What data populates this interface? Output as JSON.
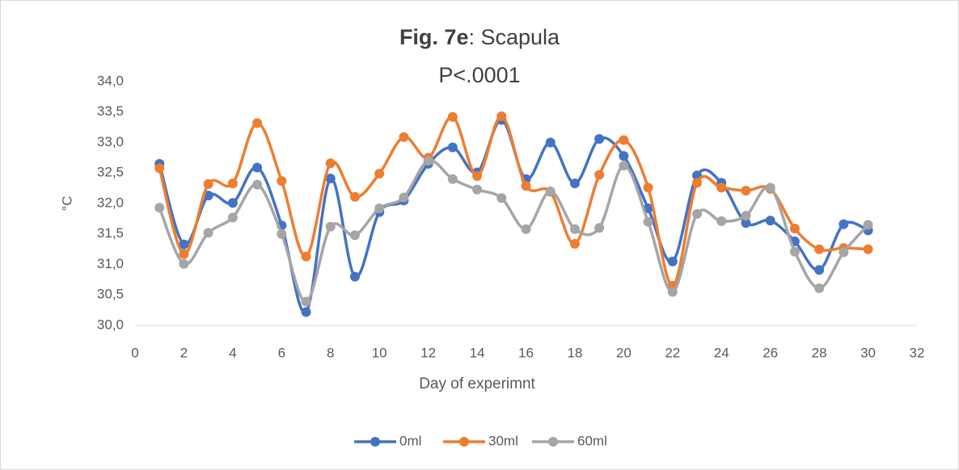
{
  "chart_data": {
    "type": "line",
    "title_parts": [
      {
        "text": "Fig. 7e",
        "bold": true
      },
      {
        "text": ": Scapula",
        "bold": false
      }
    ],
    "subtitle": "P<.0001",
    "x_label": "Day of experimnt",
    "y_label": "°C",
    "x": [
      1,
      2,
      3,
      4,
      5,
      6,
      7,
      8,
      9,
      10,
      11,
      12,
      13,
      14,
      15,
      16,
      17,
      18,
      19,
      20,
      21,
      22,
      23,
      24,
      25,
      26,
      27,
      28,
      29,
      30
    ],
    "series": [
      {
        "name": "0ml",
        "color": "#4472c4",
        "values": [
          32.65,
          31.33,
          32.13,
          32.01,
          32.59,
          31.64,
          30.22,
          32.41,
          30.8,
          31.86,
          32.05,
          32.65,
          32.92,
          32.51,
          33.37,
          32.4,
          33.0,
          32.33,
          33.06,
          32.78,
          31.92,
          31.05,
          32.46,
          32.34,
          31.68,
          31.72,
          31.38,
          30.91,
          31.66,
          31.56
        ]
      },
      {
        "name": "30ml",
        "color": "#ed7d31",
        "values": [
          32.58,
          31.17,
          32.32,
          32.33,
          33.32,
          32.37,
          31.13,
          32.66,
          32.11,
          32.49,
          33.09,
          32.75,
          33.42,
          32.45,
          33.43,
          32.29,
          32.19,
          31.34,
          32.47,
          33.04,
          32.26,
          30.65,
          32.34,
          32.26,
          32.21,
          32.24,
          31.59,
          31.25,
          31.27,
          31.25
        ]
      },
      {
        "name": "60ml",
        "color": "#a5a5a5",
        "values": [
          31.93,
          31.01,
          31.52,
          31.77,
          32.31,
          31.5,
          30.39,
          31.62,
          31.48,
          31.92,
          32.1,
          32.7,
          32.4,
          32.23,
          32.09,
          31.58,
          32.2,
          31.58,
          31.6,
          32.62,
          31.7,
          30.55,
          31.83,
          31.71,
          31.8,
          32.26,
          31.21,
          30.61,
          31.2,
          31.65
        ]
      }
    ],
    "xlim": [
      0,
      32
    ],
    "xticks": [
      0,
      2,
      4,
      6,
      8,
      10,
      12,
      14,
      16,
      18,
      20,
      22,
      24,
      26,
      28,
      30,
      32
    ],
    "ylim": [
      30,
      34
    ],
    "yticks": [
      {
        "value": 30,
        "label": "30,0"
      },
      {
        "value": 30.5,
        "label": "30,5"
      },
      {
        "value": 31,
        "label": "31,0"
      },
      {
        "value": 31.5,
        "label": "31,5"
      },
      {
        "value": 32,
        "label": "32,0"
      },
      {
        "value": 32.5,
        "label": "32,5"
      },
      {
        "value": 33,
        "label": "33,0"
      },
      {
        "value": 33.5,
        "label": "33,5"
      },
      {
        "value": 34,
        "label": "34,0"
      }
    ],
    "grid": false,
    "smooth": true,
    "legend": "bottom"
  }
}
